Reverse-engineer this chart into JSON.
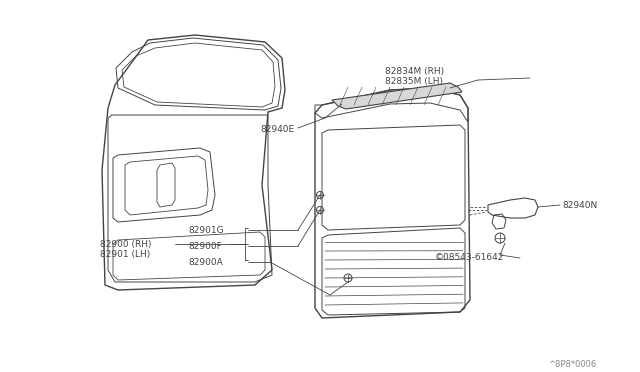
{
  "bg_color": "#ffffff",
  "line_color": "#444444",
  "text_color": "#444444",
  "watermark": "^8P8*0006",
  "labels": {
    "82834M_RH": "82834M (RH)",
    "82835M_LH": "82835M (LH)",
    "82940E": "82940E",
    "82940N": "82940N",
    "screw": "©08543-61642",
    "82901G": "82901G",
    "82900F": "82900F",
    "82900A": "82900A",
    "82900_RH": "82900 (RH)",
    "82901_LH": "82901 (LH)"
  },
  "figsize": [
    6.4,
    3.72
  ],
  "dpi": 100
}
